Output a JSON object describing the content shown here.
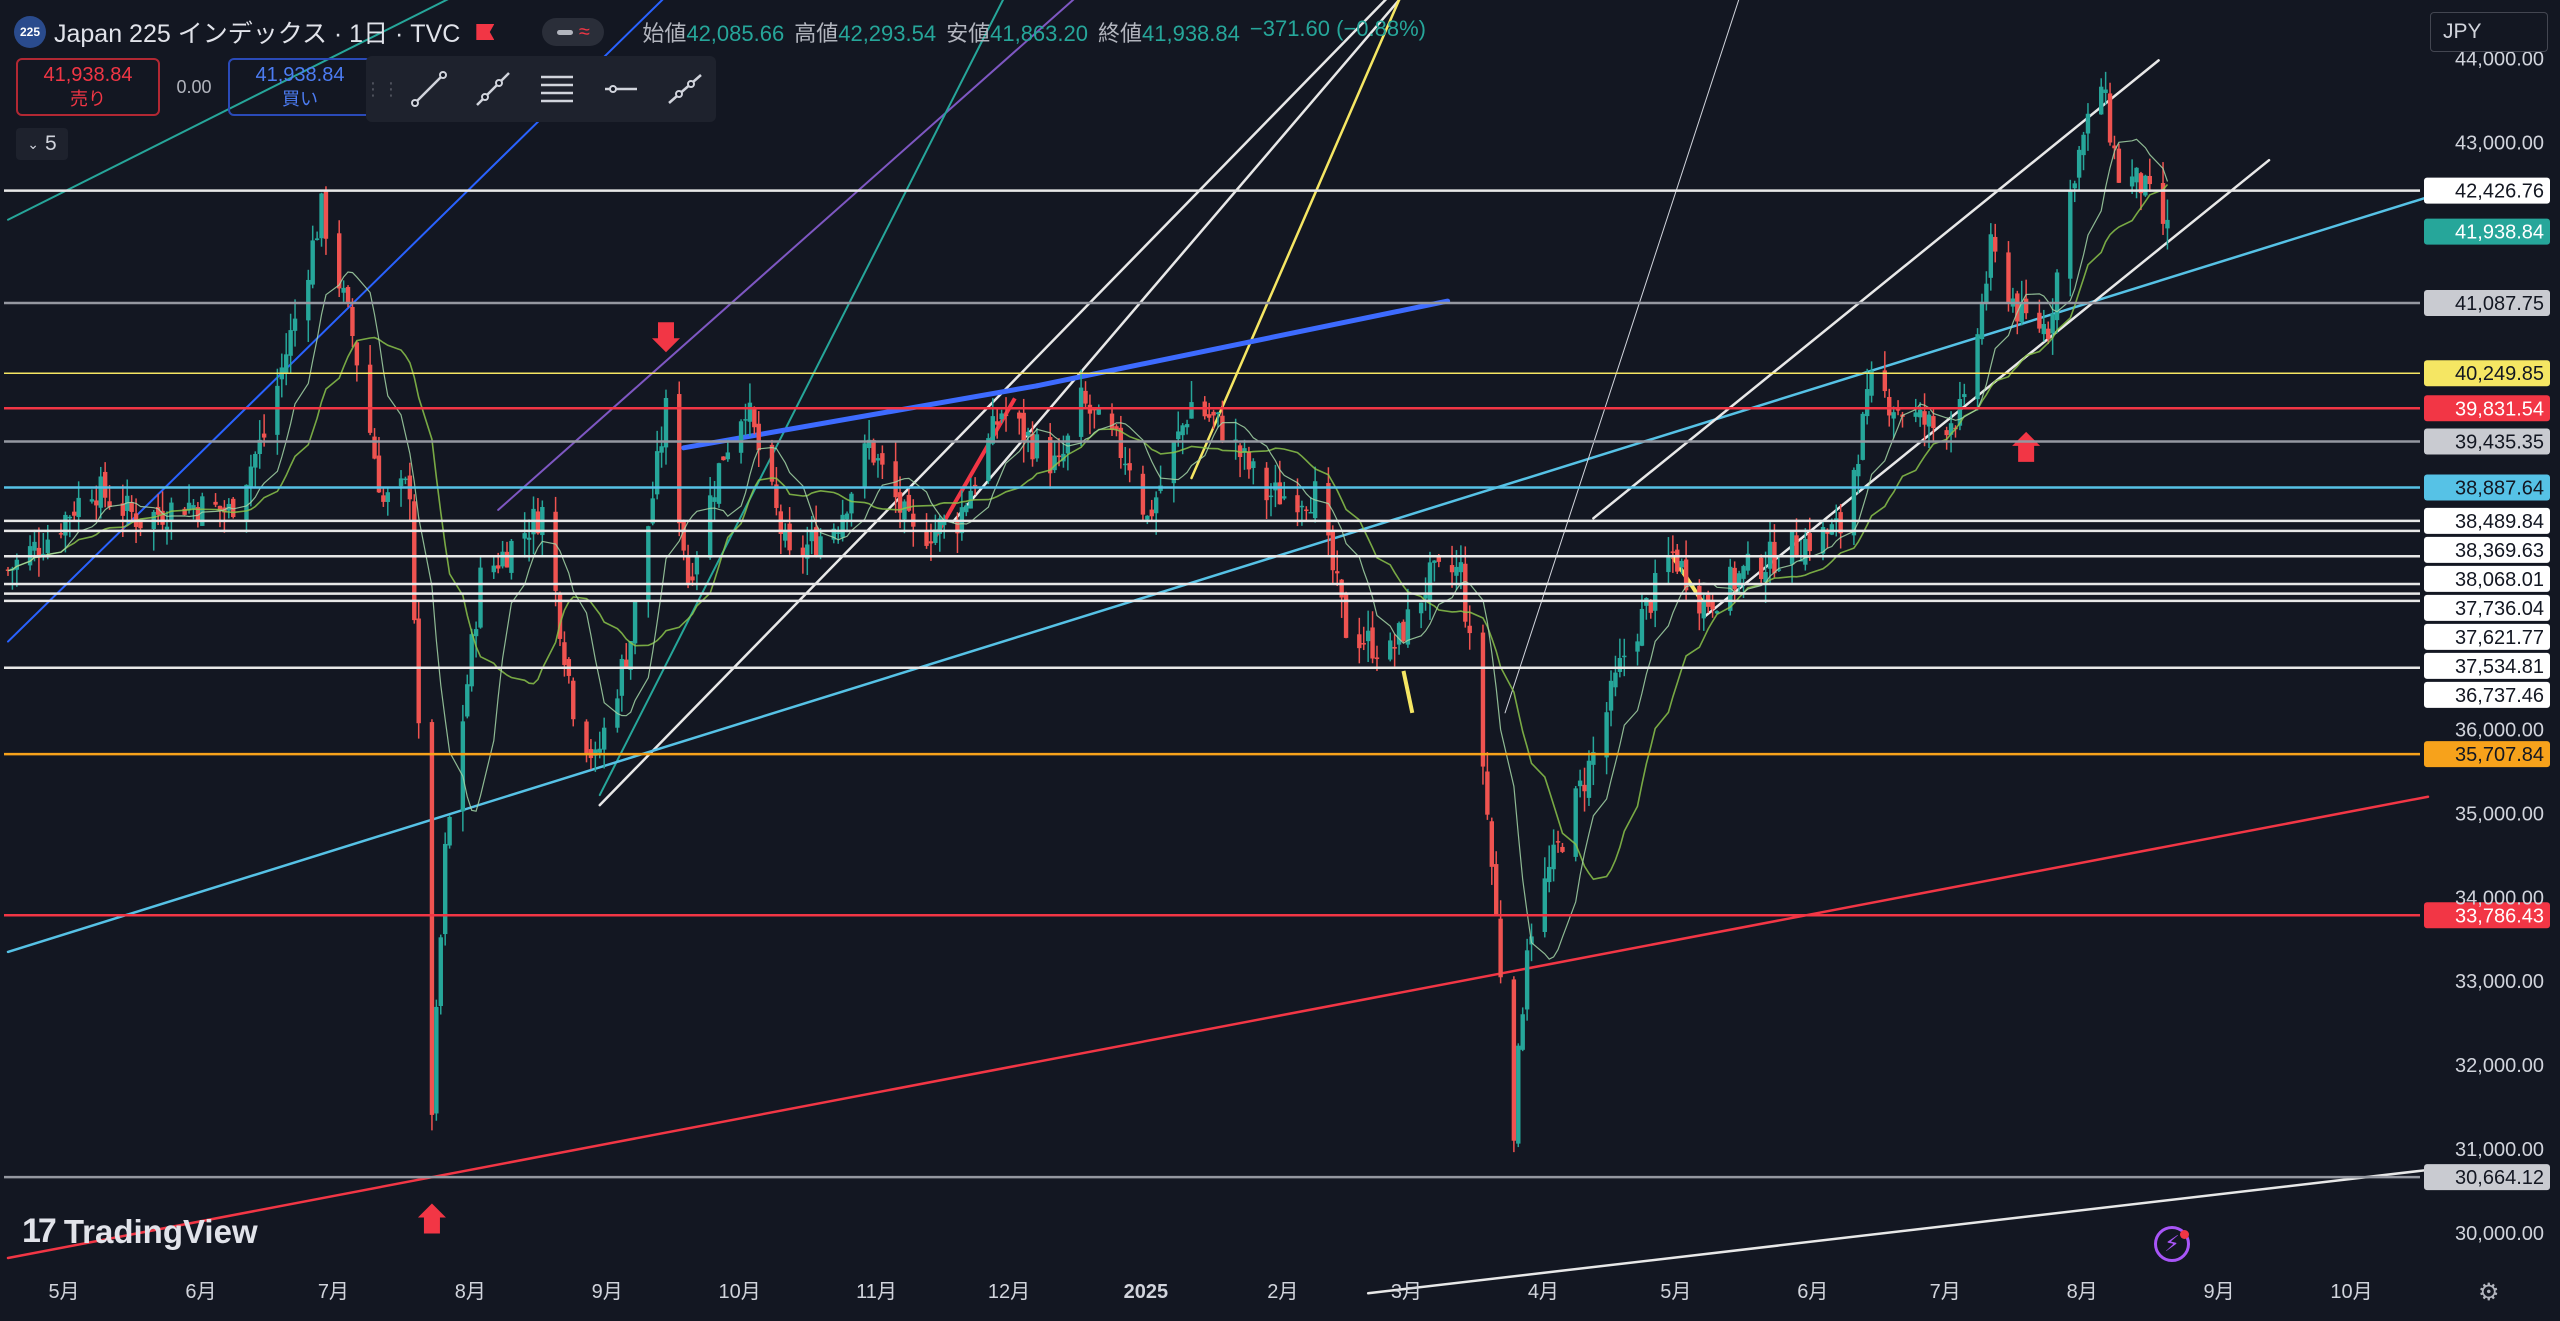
{
  "header": {
    "symbol_badge": "225",
    "title": "Japan 225 インデックス · 1日 · TVC",
    "ohlc": [
      {
        "key": "始値",
        "value": "42,085.66"
      },
      {
        "key": "高値",
        "value": "42,293.54"
      },
      {
        "key": "安値",
        "value": "41,863.20"
      },
      {
        "key": "終値",
        "value": "41,938.84"
      },
      {
        "key": "",
        "value": "−371.60 (−0.88%)"
      }
    ]
  },
  "trade": {
    "sell_price": "41,938.84",
    "sell_label": "売り",
    "spread": "0.00",
    "buy_price": "41,938.84",
    "buy_label": "買い"
  },
  "toolbar": {
    "tools": [
      "trend-line-tool",
      "ray-tool",
      "fib-channel-tool",
      "horizontal-ray-tool",
      "extended-line-tool"
    ]
  },
  "collapse": {
    "count": "5"
  },
  "currency": "JPY",
  "branding": {
    "name": "TradingView"
  },
  "colors": {
    "background": "#131722",
    "up": "#26a69a",
    "down": "#ef5350",
    "white_line": "#e8e8e8",
    "gray_line": "#b2b5be",
    "red_line": "#f23645",
    "orange_line": "#f7a21b",
    "yellow_line": "#f5e663",
    "cyan_line": "#56c2e6",
    "blue_line": "#2962ff",
    "purple_line": "#7e57c2",
    "teal_line": "#26a69a",
    "ma": "#8bc34a"
  },
  "chart_data": {
    "type": "candlestick",
    "title": "Japan 225 インデックス · 1日 · TVC",
    "ylim": [
      29700,
      44700
    ],
    "y_ticks": [
      30000,
      31000,
      32000,
      33000,
      34000,
      35000,
      36000,
      43000,
      44000
    ],
    "y_tick_labels": [
      "30,000.00",
      "31,000.00",
      "32,000.00",
      "33,000.00",
      "34,000.00",
      "35,000.00",
      "36,000.00",
      "43,000.00",
      "44,000.00"
    ],
    "x_labels": [
      "5月",
      "6月",
      "7月",
      "8月",
      "9月",
      "10月",
      "11月",
      "12月",
      "2025",
      "2月",
      "3月",
      "4月",
      "5月",
      "6月",
      "7月",
      "8月",
      "9月",
      "10月"
    ],
    "x_range": [
      "2024-05-01",
      "2025-10-31"
    ],
    "last_close": 41938.84,
    "horizontal_levels": [
      {
        "value": 42426.76,
        "label": "42,426.76",
        "style": "white"
      },
      {
        "value": 41938.84,
        "label": "41,938.84",
        "style": "green"
      },
      {
        "value": 41087.75,
        "label": "41,087.75",
        "style": "gray"
      },
      {
        "value": 40249.85,
        "label": "40,249.85",
        "style": "yellow"
      },
      {
        "value": 39831.54,
        "label": "39,831.54",
        "style": "red"
      },
      {
        "value": 39435.35,
        "label": "39,435.35",
        "style": "gray"
      },
      {
        "value": 38887.64,
        "label": "38,887.64",
        "style": "cyan"
      },
      {
        "value": 38489.84,
        "label": "38,489.84",
        "style": "white"
      },
      {
        "value": 38369.63,
        "label": "38,369.63",
        "style": "white"
      },
      {
        "value": 38068.01,
        "label": "38,068.01",
        "style": "white"
      },
      {
        "value": 37736.04,
        "label": "37,736.04",
        "style": "white"
      },
      {
        "value": 37621.77,
        "label": "37,621.77",
        "style": "white"
      },
      {
        "value": 37534.81,
        "label": "37,534.81",
        "style": "white"
      },
      {
        "value": 36737.46,
        "label": "36,737.46",
        "style": "white"
      },
      {
        "value": 35707.84,
        "label": "35,707.84",
        "style": "orange"
      },
      {
        "value": 33786.43,
        "label": "33,786.43",
        "style": "red"
      },
      {
        "value": 30664.12,
        "label": "30,664.12",
        "style": "gray"
      }
    ],
    "price_path": [
      [
        "2024-05-01",
        37900
      ],
      [
        "2024-05-10",
        38300
      ],
      [
        "2024-05-20",
        38900
      ],
      [
        "2024-05-31",
        38500
      ],
      [
        "2024-06-10",
        38700
      ],
      [
        "2024-06-20",
        38600
      ],
      [
        "2024-06-28",
        39500
      ],
      [
        "2024-07-05",
        40900
      ],
      [
        "2024-07-11",
        42200
      ],
      [
        "2024-07-18",
        40700
      ],
      [
        "2024-07-25",
        38700
      ],
      [
        "2024-07-31",
        38900
      ],
      [
        "2024-08-02",
        35900
      ],
      [
        "2024-08-05",
        31500
      ],
      [
        "2024-08-08",
        34500
      ],
      [
        "2024-08-16",
        37800
      ],
      [
        "2024-08-30",
        38600
      ],
      [
        "2024-09-06",
        36300
      ],
      [
        "2024-09-11",
        35600
      ],
      [
        "2024-09-19",
        37100
      ],
      [
        "2024-09-27",
        39800
      ],
      [
        "2024-10-02",
        37800
      ],
      [
        "2024-10-10",
        39300
      ],
      [
        "2024-10-15",
        39900
      ],
      [
        "2024-10-25",
        38000
      ],
      [
        "2024-11-05",
        38500
      ],
      [
        "2024-11-12",
        39400
      ],
      [
        "2024-11-22",
        38300
      ],
      [
        "2024-12-02",
        38500
      ],
      [
        "2024-12-12",
        39800
      ],
      [
        "2024-12-25",
        39100
      ],
      [
        "2024-12-30",
        39900
      ],
      [
        "2025-01-10",
        39200
      ],
      [
        "2025-01-14",
        38500
      ],
      [
        "2025-01-24",
        39900
      ],
      [
        "2025-01-31",
        39600
      ],
      [
        "2025-02-10",
        38800
      ],
      [
        "2025-02-21",
        38800
      ],
      [
        "2025-02-28",
        37200
      ],
      [
        "2025-03-10",
        36900
      ],
      [
        "2025-03-19",
        37800
      ],
      [
        "2025-03-26",
        37900
      ],
      [
        "2025-03-31",
        35600
      ],
      [
        "2025-04-07",
        31300
      ],
      [
        "2025-04-10",
        33500
      ],
      [
        "2025-04-15",
        34300
      ],
      [
        "2025-04-25",
        35700
      ],
      [
        "2025-05-02",
        36900
      ],
      [
        "2025-05-13",
        38100
      ],
      [
        "2025-05-20",
        37500
      ],
      [
        "2025-05-30",
        37900
      ],
      [
        "2025-06-10",
        38200
      ],
      [
        "2025-06-20",
        38400
      ],
      [
        "2025-06-27",
        40100
      ],
      [
        "2025-07-04",
        39800
      ],
      [
        "2025-07-11",
        39600
      ],
      [
        "2025-07-18",
        39800
      ],
      [
        "2025-07-24",
        41700
      ],
      [
        "2025-07-31",
        40900
      ],
      [
        "2025-08-06",
        40800
      ],
      [
        "2025-08-12",
        42700
      ],
      [
        "2025-08-18",
        43700
      ],
      [
        "2025-08-22",
        42600
      ],
      [
        "2025-08-27",
        42500
      ],
      [
        "2025-09-02",
        41938.84
      ]
    ]
  }
}
